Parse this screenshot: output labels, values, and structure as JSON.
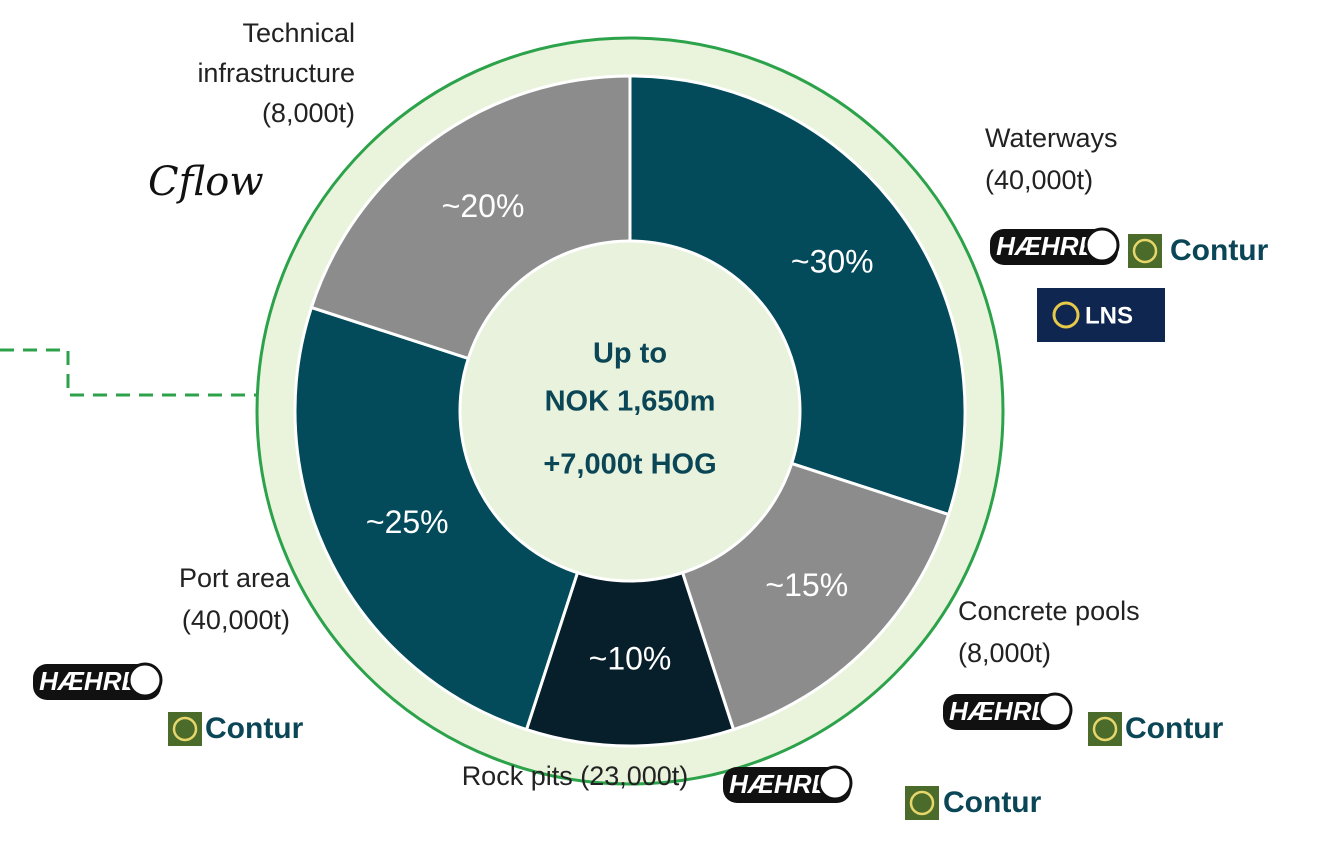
{
  "chart_data": {
    "type": "pie",
    "categories": [
      "Waterways (40,000t)",
      "Concrete pools (8,000t)",
      "Rock pits (23,000t)",
      "Port area (40,000t)",
      "Technical infrastructure (8,000t)"
    ],
    "values": [
      30,
      15,
      10,
      25,
      20
    ],
    "value_labels": [
      "~30%",
      "~15%",
      "~10%",
      "~25%",
      "~20%"
    ],
    "colors": [
      "#034a5a",
      "#8c8c8c",
      "#061f2b",
      "#034a5a",
      "#8c8c8c"
    ],
    "center_text": [
      "Up to",
      "NOK 1,650m",
      "+7,000t HOG"
    ],
    "category_lines": [
      [
        "Waterways",
        "(40,000t)"
      ],
      [
        "Concrete pools",
        "(8,000t)"
      ],
      [
        "Rock pits (23,000t)"
      ],
      [
        "Port area",
        "(40,000t)"
      ],
      [
        "Technical",
        "infrastructure",
        "(8,000t)"
      ]
    ]
  },
  "logos": [
    "Cflow",
    "HÆHRE",
    "Contur",
    "LNS",
    "HÆHRE",
    "Contur",
    "HÆHRE",
    "Contur",
    "HÆHRE",
    "Contur"
  ]
}
